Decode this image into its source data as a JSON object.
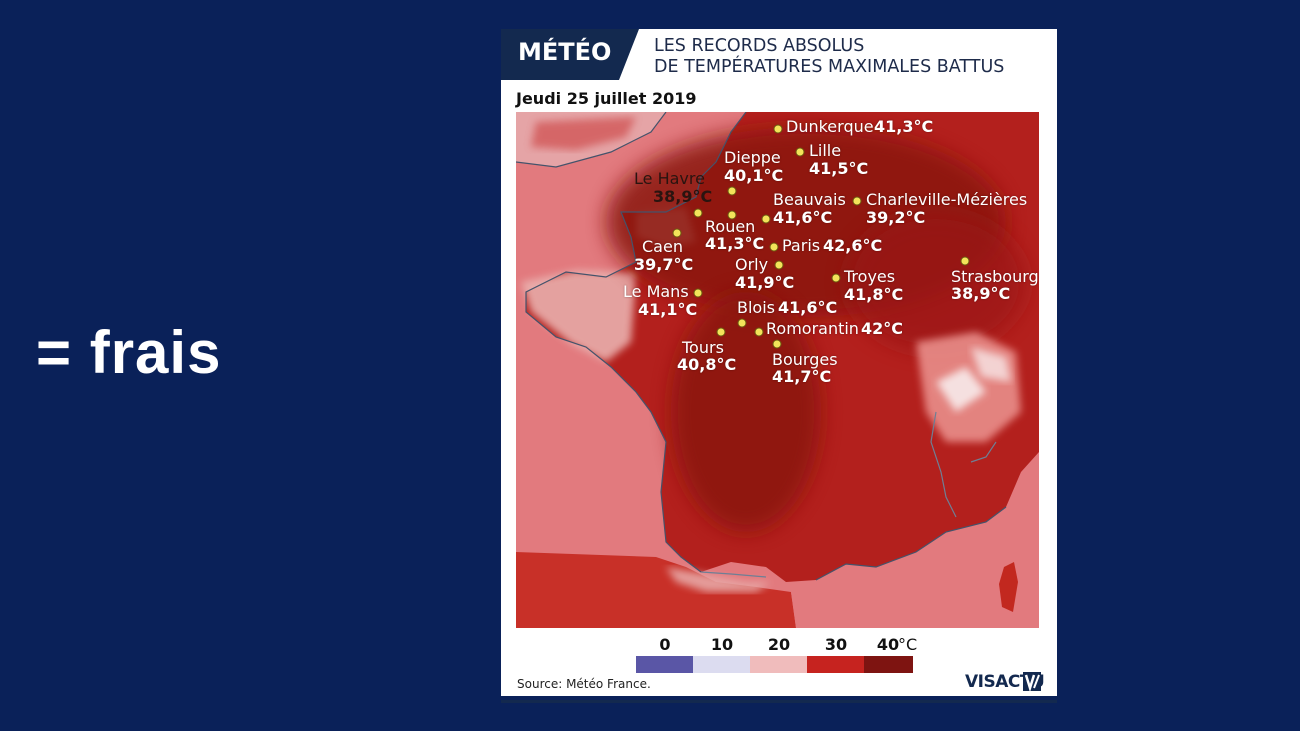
{
  "slide": {
    "text": "= frais"
  },
  "card": {
    "badge": "MÉTÉO",
    "headline_line1": "LES RECORDS ABSOLUS",
    "headline_line2": "DE TEMPÉRATURES MAXIMALES BATTUS",
    "date": "Jeudi 25 juillet 2019",
    "source": "Source: Météo France.",
    "logo": "VISACTU"
  },
  "cities": [
    {
      "name": "Dunkerque",
      "temp": "41,3°C"
    },
    {
      "name": "Lille",
      "temp": "41,5°C"
    },
    {
      "name": "Dieppe",
      "temp": "40,1°C"
    },
    {
      "name": "Le Havre",
      "temp": "38,9°C"
    },
    {
      "name": "Beauvais",
      "temp": "41,6°C"
    },
    {
      "name": "Charleville-Mézières",
      "temp": "39,2°C"
    },
    {
      "name": "Rouen",
      "temp": "41,3°C"
    },
    {
      "name": "Caen",
      "temp": "39,7°C"
    },
    {
      "name": "Paris",
      "temp": "42,6°C"
    },
    {
      "name": "Orly",
      "temp": "41,9°C"
    },
    {
      "name": "Troyes",
      "temp": "41,8°C"
    },
    {
      "name": "Strasbourg",
      "temp": "38,9°C"
    },
    {
      "name": "Le Mans",
      "temp": "41,1°C"
    },
    {
      "name": "Blois",
      "temp": "41,6°C"
    },
    {
      "name": "Romorantin",
      "temp": "42°C"
    },
    {
      "name": "Tours",
      "temp": "40,8°C"
    },
    {
      "name": "Bourges",
      "temp": "41,7°C"
    }
  ],
  "legend": {
    "ticks": [
      "0",
      "10",
      "20",
      "30",
      "40"
    ],
    "unit": "°C",
    "colors": [
      "#5a56a6",
      "#dcdcf0",
      "#f0bcbc",
      "#c6231f",
      "#7e1411"
    ]
  },
  "colors": {
    "background": "#0a2159",
    "badge": "#13294f",
    "sea": "#e4787d",
    "land_hot": "#b8201d",
    "land_very_hot": "#8c1412"
  }
}
